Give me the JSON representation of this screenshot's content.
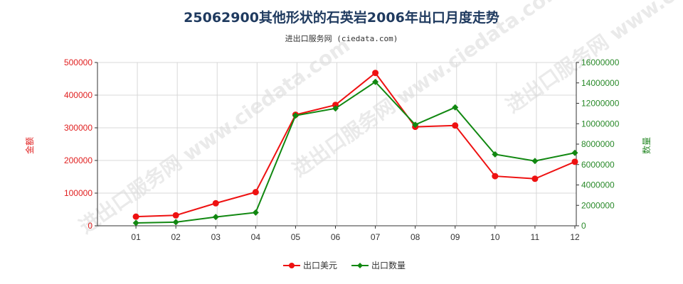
{
  "chart_data": {
    "type": "line",
    "title": "25062900其他形状的石英岩2006年出口月度走势",
    "subtitle": "进出口服务网 (ciedata.com)",
    "categories": [
      "01",
      "02",
      "03",
      "04",
      "05",
      "06",
      "07",
      "08",
      "09",
      "10",
      "11",
      "12"
    ],
    "y_left": {
      "label": "金额",
      "lim": [
        0,
        500000
      ],
      "ticks": [
        "0",
        "100000",
        "200000",
        "300000",
        "400000",
        "500000"
      ],
      "color": "#e02020"
    },
    "y_right": {
      "label": "数量",
      "lim": [
        0,
        16000000
      ],
      "ticks": [
        "0",
        "2000000",
        "4000000",
        "6000000",
        "8000000",
        "10000000",
        "12000000",
        "14000000",
        "16000000"
      ],
      "color": "#2a8a2a"
    },
    "series": [
      {
        "name": "出口美元",
        "axis": "left",
        "color": "#ee1111",
        "marker": "circle",
        "values": [
          28000,
          32000,
          69000,
          103000,
          340000,
          370000,
          468000,
          303000,
          307000,
          152000,
          144000,
          196000
        ]
      },
      {
        "name": "出口数量",
        "axis": "right",
        "color": "#118811",
        "marker": "diamond",
        "values": [
          280000,
          360000,
          860000,
          1300000,
          10800000,
          11500000,
          14100000,
          9900000,
          11600000,
          7000000,
          6350000,
          7150000
        ]
      }
    ],
    "grid": true,
    "legend_position": "bottom"
  },
  "watermark": "进出口服务网 www.ciedata.com"
}
